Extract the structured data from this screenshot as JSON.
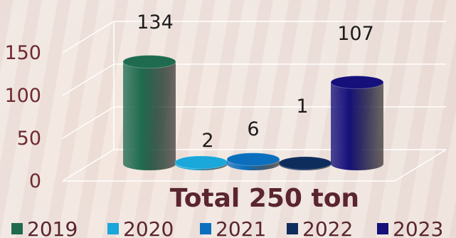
{
  "chart_data": {
    "type": "bar",
    "categories": [
      "2019",
      "2020",
      "2021",
      "2022",
      "2023"
    ],
    "values": [
      134,
      2,
      6,
      1,
      107
    ],
    "data_labels": [
      "134",
      "2",
      "6",
      "1",
      "107"
    ],
    "ylim": [
      0,
      150
    ],
    "yticks": [
      "0",
      "50",
      "100",
      "150"
    ],
    "grid": true,
    "legend_position": "bottom",
    "annotation": "Total 250 ton",
    "colors": [
      "#1f6b4f",
      "#1aa7d9",
      "#0b6fbd",
      "#0f2d5c",
      "#15107a"
    ]
  }
}
